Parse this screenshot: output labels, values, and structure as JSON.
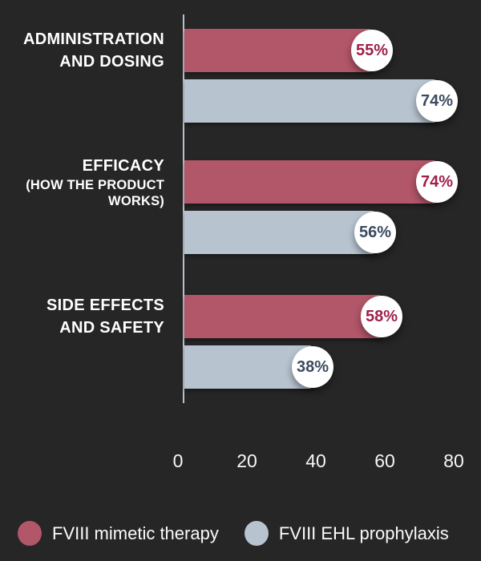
{
  "colors": {
    "background": "#262626",
    "bar_mimetic": "#b25669",
    "bar_ehl": "#b7c3cf",
    "circle_background": "#ffffff",
    "circle_text_mimetic": "#a02049",
    "circle_text_ehl": "#3c4b5d",
    "axis_line": "#b8c1ca",
    "label_text": "#ffffff"
  },
  "chart_data": {
    "type": "bar",
    "orientation": "horizontal",
    "title": "",
    "xlabel": "",
    "ylabel": "",
    "xlim": [
      0,
      80
    ],
    "x_ticks": [
      0,
      20,
      40,
      60,
      80
    ],
    "grid": false,
    "legend_position": "bottom",
    "categories": [
      {
        "lines": [
          "ADMINISTRATION",
          "AND DOSING"
        ],
        "sublines": []
      },
      {
        "lines": [
          "EFFICACY"
        ],
        "sublines": [
          "(HOW THE PRODUCT",
          "WORKS)"
        ]
      },
      {
        "lines": [
          "SIDE EFFECTS",
          "AND SAFETY"
        ],
        "sublines": []
      }
    ],
    "series": [
      {
        "name": "FVIII mimetic therapy",
        "color": "#b25669",
        "values": [
          55,
          74,
          58
        ],
        "labels": [
          "55%",
          "74%",
          "58%"
        ]
      },
      {
        "name": "FVIII EHL prophylaxis",
        "color": "#b7c3cf",
        "values": [
          74,
          56,
          38
        ],
        "labels": [
          "74%",
          "56%",
          "38%"
        ]
      }
    ]
  }
}
